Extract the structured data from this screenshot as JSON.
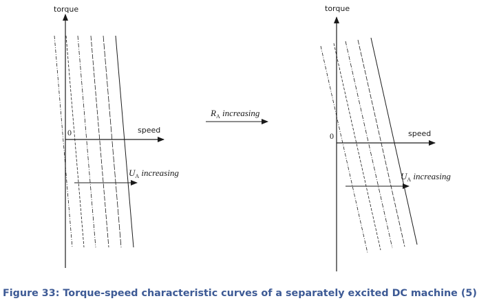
{
  "figure": {
    "caption": "Figure 33: Torque-speed characteristic curves of a separately excited DC machine (5)",
    "left_panel": {
      "y_axis_label": "torque",
      "x_axis_label": "speed",
      "origin_label": "0",
      "annotation": {
        "symbol": "U",
        "subscript": "A",
        "text": "increasing"
      }
    },
    "middle": {
      "annotation": {
        "symbol": "R",
        "subscript": "A",
        "text": "increasing"
      }
    },
    "right_panel": {
      "y_axis_label": "torque",
      "x_axis_label": "speed",
      "origin_label": "0",
      "annotation": {
        "symbol": "U",
        "subscript": "A",
        "text": "increasing"
      }
    },
    "colors": {
      "caption": "#3d5a95",
      "lines": "#1a1a1a"
    }
  }
}
